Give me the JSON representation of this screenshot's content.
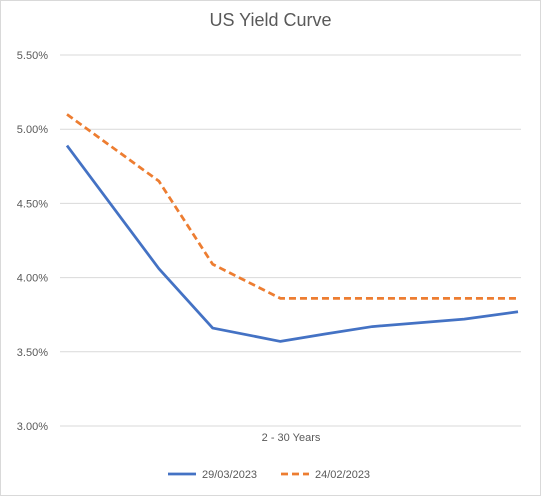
{
  "chart_data": {
    "type": "line",
    "title": "US Yield Curve",
    "xlabel": "2 - 30 Years",
    "ylabel": "",
    "ylim": [
      3.0,
      5.5
    ],
    "yticks": [
      "3.00%",
      "3.50%",
      "4.00%",
      "4.50%",
      "5.00%",
      "5.50%"
    ],
    "ytick_values": [
      3.0,
      3.5,
      4.0,
      4.5,
      5.0,
      5.5
    ],
    "x": [
      1,
      2,
      3,
      5,
      7,
      10,
      20,
      30
    ],
    "grid": true,
    "legend_placement": "bottom",
    "series": [
      {
        "name": "29/03/2023",
        "color": "#4472c4",
        "style": "solid",
        "values": [
          4.89,
          4.06,
          3.66,
          3.57,
          3.62,
          3.67,
          3.72,
          3.77
        ]
      },
      {
        "name": "24/02/2023",
        "color": "#ed7d31",
        "style": "dashed",
        "values": [
          5.1,
          4.65,
          4.09,
          3.86,
          3.86,
          3.86,
          3.86,
          3.86
        ]
      }
    ]
  }
}
